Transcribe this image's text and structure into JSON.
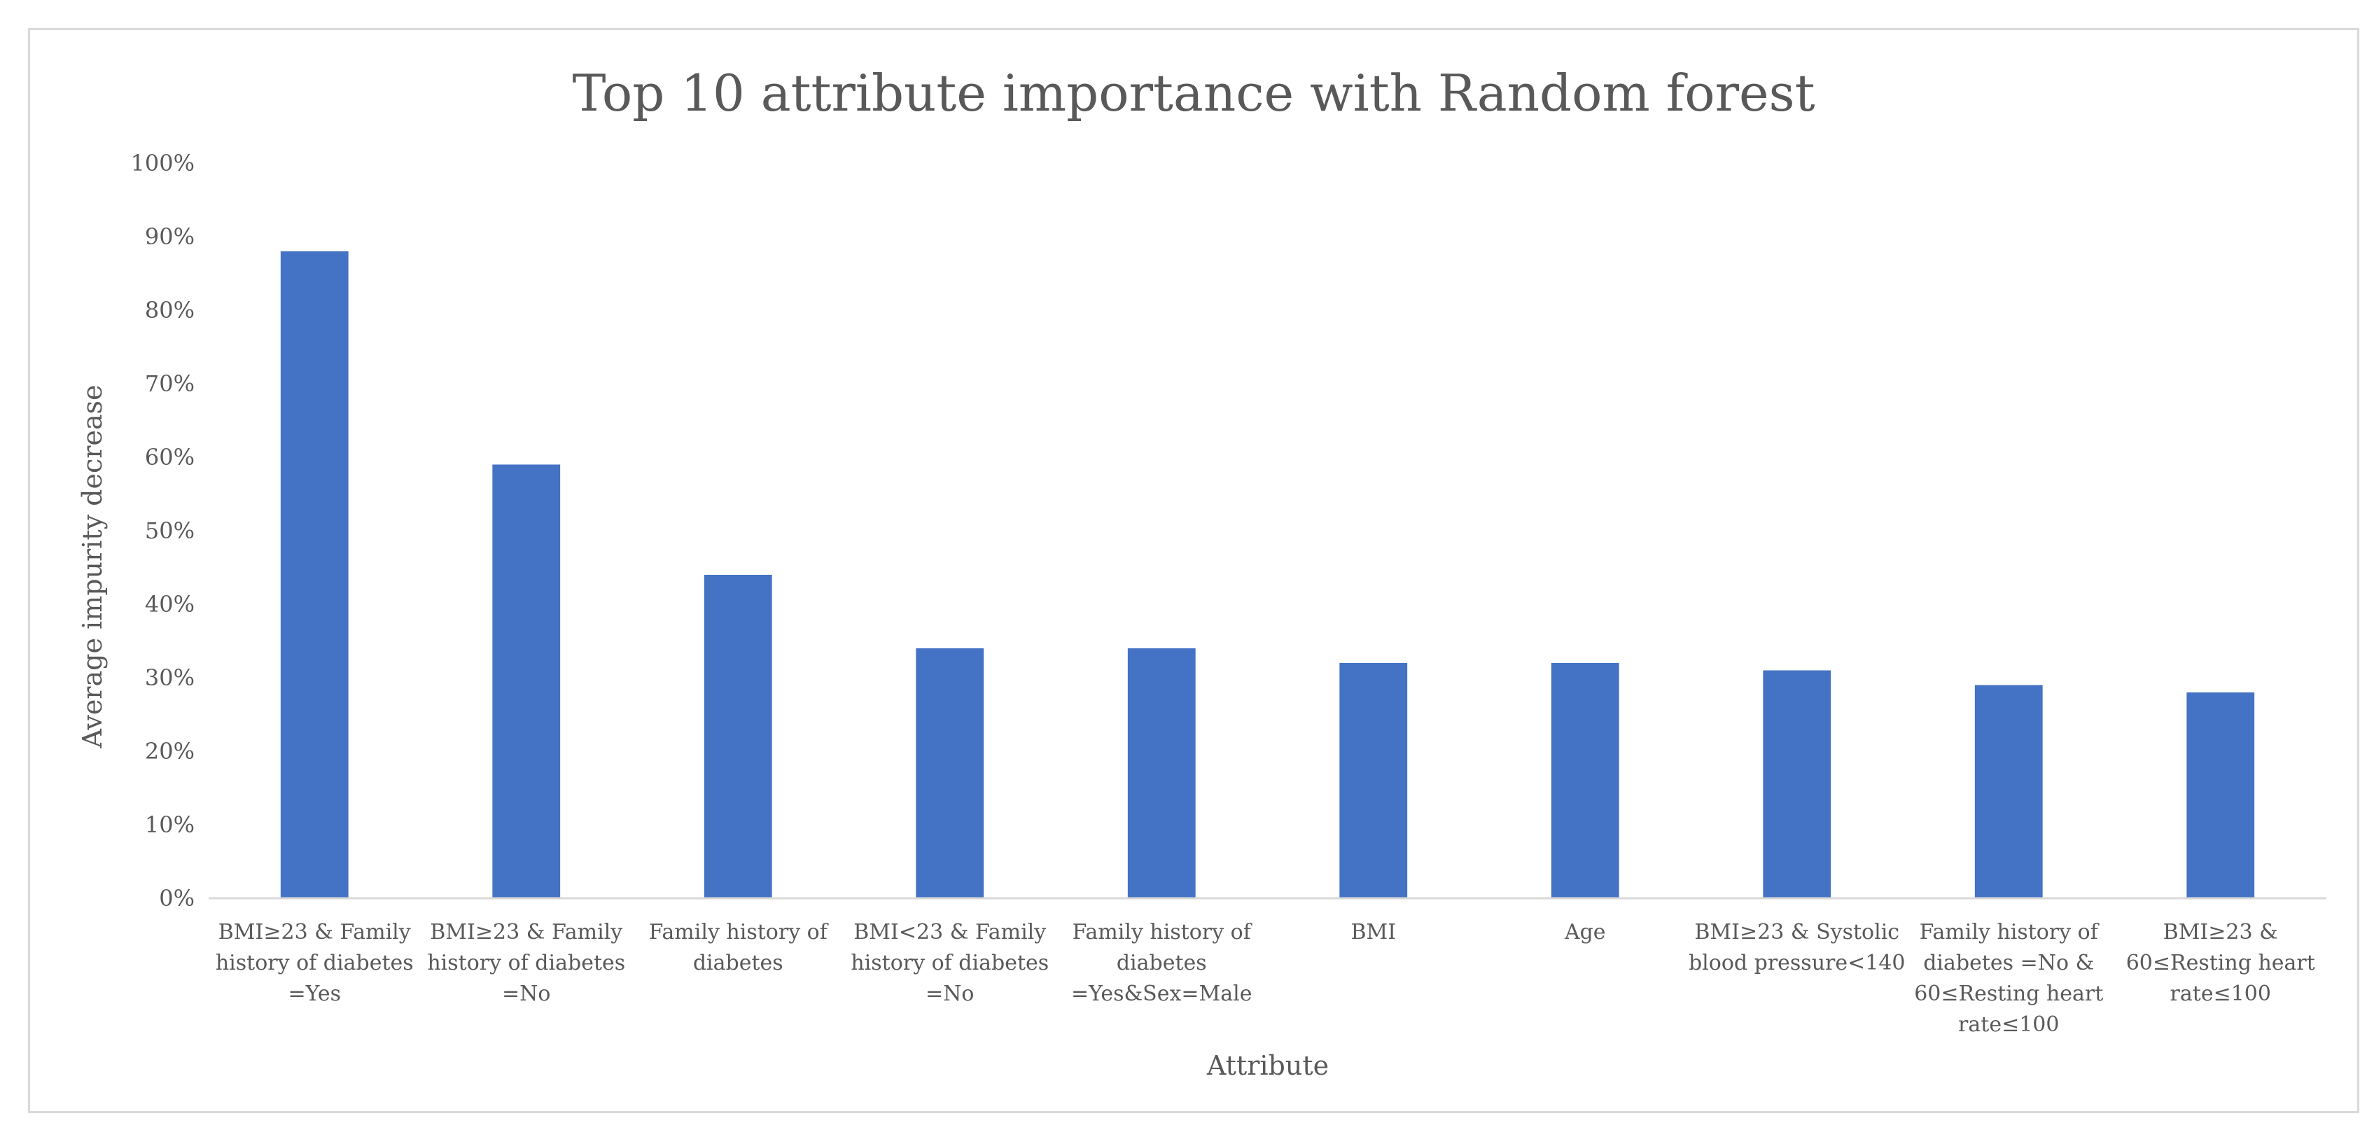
{
  "chart_data": {
    "type": "bar",
    "title": "Top 10 attribute importance with Random forest",
    "xlabel": "Attribute",
    "ylabel": "Average impurity decrease",
    "ylim": [
      0,
      100
    ],
    "yticks": [
      "0%",
      "10%",
      "20%",
      "30%",
      "40%",
      "50%",
      "60%",
      "70%",
      "80%",
      "90%",
      "100%"
    ],
    "grid": false,
    "legend": "none",
    "bar_color": "#4472C4",
    "categories": [
      [
        "BMI≥23 & Family",
        "history of diabetes",
        "=Yes"
      ],
      [
        "BMI≥23 & Family",
        "history of diabetes",
        "=No"
      ],
      [
        "Family history of",
        "diabetes"
      ],
      [
        "BMI<23 & Family",
        "history of diabetes",
        "=No"
      ],
      [
        "Family history of",
        "diabetes",
        "=Yes&Sex=Male"
      ],
      [
        "BMI"
      ],
      [
        "Age"
      ],
      [
        "BMI≥23 & Systolic",
        "blood pressure<140"
      ],
      [
        "Family history of",
        "diabetes =No &",
        "60≤Resting heart",
        "rate≤100"
      ],
      [
        "BMI≥23 &",
        "60≤Resting heart",
        "rate≤100"
      ]
    ],
    "values": [
      88,
      59,
      44,
      34,
      34,
      32,
      32,
      31,
      29,
      28
    ]
  }
}
